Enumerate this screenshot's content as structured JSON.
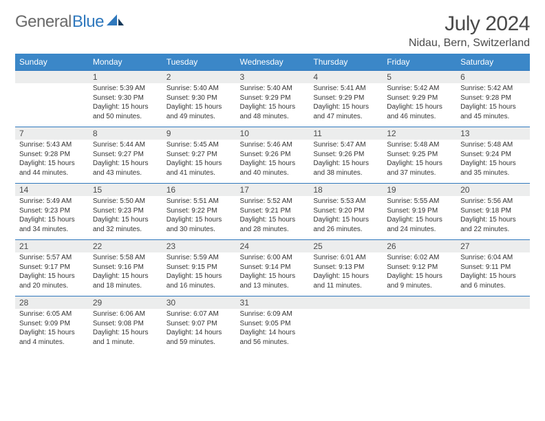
{
  "brand": {
    "word1": "General",
    "word2": "Blue"
  },
  "title": "July 2024",
  "location": "Nidau, Bern, Switzerland",
  "colors": {
    "header_bg": "#3b87c8",
    "date_row_bg": "#eceded",
    "row_border": "#2f78bd",
    "text_dark": "#4a4a4a",
    "brand_gray": "#6a6a6a",
    "brand_blue": "#2f78bd"
  },
  "day_names": [
    "Sunday",
    "Monday",
    "Tuesday",
    "Wednesday",
    "Thursday",
    "Friday",
    "Saturday"
  ],
  "weeks": [
    {
      "dates": [
        "",
        "1",
        "2",
        "3",
        "4",
        "5",
        "6"
      ],
      "cells": [
        {
          "sunrise": "",
          "sunset": "",
          "daylight": ""
        },
        {
          "sunrise": "Sunrise: 5:39 AM",
          "sunset": "Sunset: 9:30 PM",
          "daylight": "Daylight: 15 hours and 50 minutes."
        },
        {
          "sunrise": "Sunrise: 5:40 AM",
          "sunset": "Sunset: 9:30 PM",
          "daylight": "Daylight: 15 hours and 49 minutes."
        },
        {
          "sunrise": "Sunrise: 5:40 AM",
          "sunset": "Sunset: 9:29 PM",
          "daylight": "Daylight: 15 hours and 48 minutes."
        },
        {
          "sunrise": "Sunrise: 5:41 AM",
          "sunset": "Sunset: 9:29 PM",
          "daylight": "Daylight: 15 hours and 47 minutes."
        },
        {
          "sunrise": "Sunrise: 5:42 AM",
          "sunset": "Sunset: 9:29 PM",
          "daylight": "Daylight: 15 hours and 46 minutes."
        },
        {
          "sunrise": "Sunrise: 5:42 AM",
          "sunset": "Sunset: 9:28 PM",
          "daylight": "Daylight: 15 hours and 45 minutes."
        }
      ]
    },
    {
      "dates": [
        "7",
        "8",
        "9",
        "10",
        "11",
        "12",
        "13"
      ],
      "cells": [
        {
          "sunrise": "Sunrise: 5:43 AM",
          "sunset": "Sunset: 9:28 PM",
          "daylight": "Daylight: 15 hours and 44 minutes."
        },
        {
          "sunrise": "Sunrise: 5:44 AM",
          "sunset": "Sunset: 9:27 PM",
          "daylight": "Daylight: 15 hours and 43 minutes."
        },
        {
          "sunrise": "Sunrise: 5:45 AM",
          "sunset": "Sunset: 9:27 PM",
          "daylight": "Daylight: 15 hours and 41 minutes."
        },
        {
          "sunrise": "Sunrise: 5:46 AM",
          "sunset": "Sunset: 9:26 PM",
          "daylight": "Daylight: 15 hours and 40 minutes."
        },
        {
          "sunrise": "Sunrise: 5:47 AM",
          "sunset": "Sunset: 9:26 PM",
          "daylight": "Daylight: 15 hours and 38 minutes."
        },
        {
          "sunrise": "Sunrise: 5:48 AM",
          "sunset": "Sunset: 9:25 PM",
          "daylight": "Daylight: 15 hours and 37 minutes."
        },
        {
          "sunrise": "Sunrise: 5:48 AM",
          "sunset": "Sunset: 9:24 PM",
          "daylight": "Daylight: 15 hours and 35 minutes."
        }
      ]
    },
    {
      "dates": [
        "14",
        "15",
        "16",
        "17",
        "18",
        "19",
        "20"
      ],
      "cells": [
        {
          "sunrise": "Sunrise: 5:49 AM",
          "sunset": "Sunset: 9:23 PM",
          "daylight": "Daylight: 15 hours and 34 minutes."
        },
        {
          "sunrise": "Sunrise: 5:50 AM",
          "sunset": "Sunset: 9:23 PM",
          "daylight": "Daylight: 15 hours and 32 minutes."
        },
        {
          "sunrise": "Sunrise: 5:51 AM",
          "sunset": "Sunset: 9:22 PM",
          "daylight": "Daylight: 15 hours and 30 minutes."
        },
        {
          "sunrise": "Sunrise: 5:52 AM",
          "sunset": "Sunset: 9:21 PM",
          "daylight": "Daylight: 15 hours and 28 minutes."
        },
        {
          "sunrise": "Sunrise: 5:53 AM",
          "sunset": "Sunset: 9:20 PM",
          "daylight": "Daylight: 15 hours and 26 minutes."
        },
        {
          "sunrise": "Sunrise: 5:55 AM",
          "sunset": "Sunset: 9:19 PM",
          "daylight": "Daylight: 15 hours and 24 minutes."
        },
        {
          "sunrise": "Sunrise: 5:56 AM",
          "sunset": "Sunset: 9:18 PM",
          "daylight": "Daylight: 15 hours and 22 minutes."
        }
      ]
    },
    {
      "dates": [
        "21",
        "22",
        "23",
        "24",
        "25",
        "26",
        "27"
      ],
      "cells": [
        {
          "sunrise": "Sunrise: 5:57 AM",
          "sunset": "Sunset: 9:17 PM",
          "daylight": "Daylight: 15 hours and 20 minutes."
        },
        {
          "sunrise": "Sunrise: 5:58 AM",
          "sunset": "Sunset: 9:16 PM",
          "daylight": "Daylight: 15 hours and 18 minutes."
        },
        {
          "sunrise": "Sunrise: 5:59 AM",
          "sunset": "Sunset: 9:15 PM",
          "daylight": "Daylight: 15 hours and 16 minutes."
        },
        {
          "sunrise": "Sunrise: 6:00 AM",
          "sunset": "Sunset: 9:14 PM",
          "daylight": "Daylight: 15 hours and 13 minutes."
        },
        {
          "sunrise": "Sunrise: 6:01 AM",
          "sunset": "Sunset: 9:13 PM",
          "daylight": "Daylight: 15 hours and 11 minutes."
        },
        {
          "sunrise": "Sunrise: 6:02 AM",
          "sunset": "Sunset: 9:12 PM",
          "daylight": "Daylight: 15 hours and 9 minutes."
        },
        {
          "sunrise": "Sunrise: 6:04 AM",
          "sunset": "Sunset: 9:11 PM",
          "daylight": "Daylight: 15 hours and 6 minutes."
        }
      ]
    },
    {
      "dates": [
        "28",
        "29",
        "30",
        "31",
        "",
        "",
        ""
      ],
      "cells": [
        {
          "sunrise": "Sunrise: 6:05 AM",
          "sunset": "Sunset: 9:09 PM",
          "daylight": "Daylight: 15 hours and 4 minutes."
        },
        {
          "sunrise": "Sunrise: 6:06 AM",
          "sunset": "Sunset: 9:08 PM",
          "daylight": "Daylight: 15 hours and 1 minute."
        },
        {
          "sunrise": "Sunrise: 6:07 AM",
          "sunset": "Sunset: 9:07 PM",
          "daylight": "Daylight: 14 hours and 59 minutes."
        },
        {
          "sunrise": "Sunrise: 6:09 AM",
          "sunset": "Sunset: 9:05 PM",
          "daylight": "Daylight: 14 hours and 56 minutes."
        },
        {
          "sunrise": "",
          "sunset": "",
          "daylight": ""
        },
        {
          "sunrise": "",
          "sunset": "",
          "daylight": ""
        },
        {
          "sunrise": "",
          "sunset": "",
          "daylight": ""
        }
      ]
    }
  ]
}
